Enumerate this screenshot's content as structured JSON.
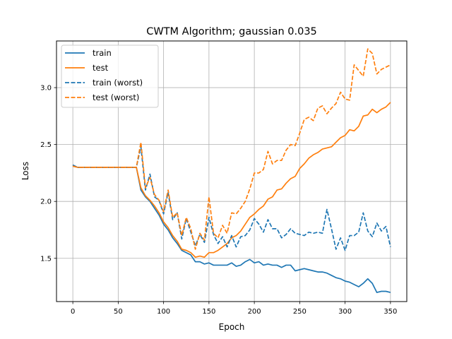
{
  "chart_data": {
    "type": "line",
    "title": "CWTM Algorithm; gaussian 0.035",
    "xlabel": "Epoch",
    "ylabel": "Loss",
    "xlim": [
      -18,
      368
    ],
    "ylim": [
      1.12,
      3.41
    ],
    "x_ticks": [
      0,
      50,
      100,
      150,
      200,
      250,
      300,
      350
    ],
    "y_ticks": [
      1.5,
      2.0,
      2.5,
      3.0
    ],
    "grid": true,
    "legend_position": "top-left",
    "x": [
      0,
      5,
      10,
      15,
      20,
      25,
      30,
      35,
      40,
      45,
      50,
      55,
      60,
      65,
      70,
      75,
      80,
      85,
      90,
      95,
      100,
      105,
      110,
      115,
      120,
      125,
      130,
      135,
      140,
      145,
      150,
      155,
      160,
      165,
      170,
      175,
      180,
      185,
      190,
      195,
      200,
      205,
      210,
      215,
      220,
      225,
      230,
      235,
      240,
      245,
      250,
      255,
      260,
      265,
      270,
      275,
      280,
      285,
      290,
      295,
      300,
      305,
      310,
      315,
      320,
      325,
      330,
      335,
      340,
      345,
      350
    ],
    "series": [
      {
        "name": "train",
        "color": "#1f77b4",
        "style": "solid",
        "values": [
          2.32,
          2.3,
          2.3,
          2.3,
          2.3,
          2.3,
          2.3,
          2.3,
          2.3,
          2.3,
          2.3,
          2.3,
          2.3,
          2.3,
          2.3,
          2.1,
          2.04,
          2.0,
          1.94,
          1.88,
          1.8,
          1.75,
          1.68,
          1.63,
          1.57,
          1.55,
          1.53,
          1.47,
          1.47,
          1.45,
          1.46,
          1.44,
          1.44,
          1.44,
          1.44,
          1.46,
          1.43,
          1.44,
          1.47,
          1.49,
          1.46,
          1.47,
          1.44,
          1.45,
          1.44,
          1.44,
          1.42,
          1.44,
          1.44,
          1.39,
          1.4,
          1.41,
          1.4,
          1.39,
          1.38,
          1.38,
          1.37,
          1.35,
          1.33,
          1.32,
          1.3,
          1.29,
          1.27,
          1.25,
          1.28,
          1.32,
          1.28,
          1.2,
          1.21,
          1.21,
          1.2
        ]
      },
      {
        "name": "test",
        "color": "#ff7f0e",
        "style": "solid",
        "values": [
          2.31,
          2.3,
          2.3,
          2.3,
          2.3,
          2.3,
          2.3,
          2.3,
          2.3,
          2.3,
          2.3,
          2.3,
          2.3,
          2.3,
          2.3,
          2.12,
          2.05,
          2.01,
          1.96,
          1.9,
          1.82,
          1.77,
          1.7,
          1.65,
          1.58,
          1.57,
          1.55,
          1.51,
          1.52,
          1.51,
          1.55,
          1.55,
          1.57,
          1.6,
          1.63,
          1.68,
          1.7,
          1.74,
          1.8,
          1.86,
          1.89,
          1.93,
          1.96,
          2.02,
          2.04,
          2.1,
          2.11,
          2.16,
          2.2,
          2.22,
          2.29,
          2.33,
          2.38,
          2.41,
          2.43,
          2.46,
          2.47,
          2.48,
          2.52,
          2.56,
          2.58,
          2.63,
          2.62,
          2.66,
          2.75,
          2.76,
          2.81,
          2.78,
          2.81,
          2.83,
          2.87
        ]
      },
      {
        "name": "train (worst)",
        "color": "#1f77b4",
        "style": "dashed",
        "values": [
          2.32,
          2.3,
          2.3,
          2.3,
          2.3,
          2.3,
          2.3,
          2.3,
          2.3,
          2.3,
          2.3,
          2.3,
          2.3,
          2.3,
          2.3,
          2.48,
          2.1,
          2.24,
          2.04,
          2.01,
          1.89,
          2.08,
          1.84,
          1.9,
          1.67,
          1.85,
          1.73,
          1.61,
          1.71,
          1.64,
          1.86,
          1.71,
          1.63,
          1.69,
          1.6,
          1.7,
          1.6,
          1.69,
          1.7,
          1.75,
          1.85,
          1.8,
          1.73,
          1.84,
          1.76,
          1.76,
          1.68,
          1.71,
          1.76,
          1.72,
          1.71,
          1.7,
          1.73,
          1.72,
          1.73,
          1.72,
          1.93,
          1.76,
          1.58,
          1.68,
          1.57,
          1.7,
          1.7,
          1.73,
          1.9,
          1.74,
          1.69,
          1.81,
          1.74,
          1.78,
          1.6
        ]
      },
      {
        "name": "test (worst)",
        "color": "#ff7f0e",
        "style": "dashed",
        "values": [
          2.31,
          2.3,
          2.3,
          2.3,
          2.3,
          2.3,
          2.3,
          2.3,
          2.3,
          2.3,
          2.3,
          2.3,
          2.3,
          2.3,
          2.3,
          2.52,
          2.12,
          2.21,
          2.06,
          2.01,
          1.91,
          2.1,
          1.86,
          1.9,
          1.7,
          1.86,
          1.76,
          1.58,
          1.72,
          1.66,
          2.04,
          1.72,
          1.68,
          1.79,
          1.72,
          1.9,
          1.89,
          1.94,
          2.0,
          2.11,
          2.25,
          2.25,
          2.28,
          2.44,
          2.33,
          2.36,
          2.36,
          2.45,
          2.5,
          2.49,
          2.6,
          2.72,
          2.74,
          2.71,
          2.82,
          2.84,
          2.77,
          2.82,
          2.86,
          2.96,
          2.9,
          2.89,
          3.2,
          3.15,
          3.1,
          3.34,
          3.3,
          3.12,
          3.16,
          3.18,
          3.2
        ]
      }
    ]
  }
}
